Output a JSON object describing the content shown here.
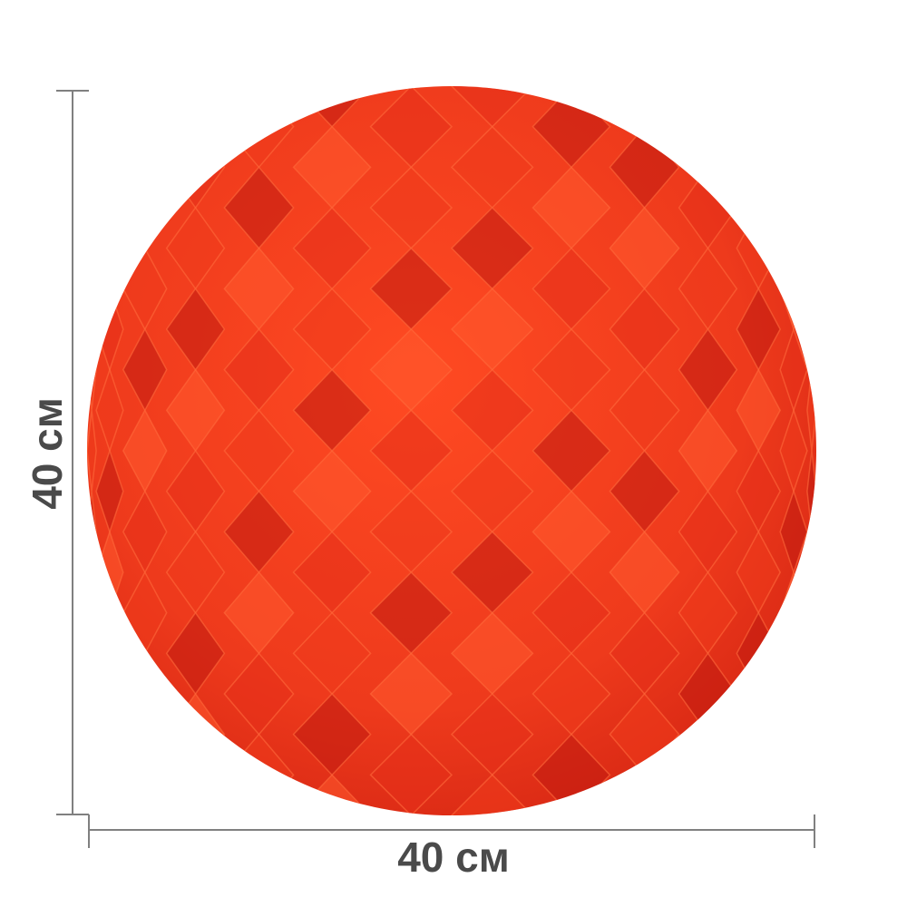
{
  "product": {
    "name_icon": "honeycomb-paper-ball",
    "color": "#ee3a1c",
    "shade_dark": "#c01a10",
    "shade_light": "#ff5a2e"
  },
  "dimensions": {
    "width_label": "40 см",
    "height_label": "40 см",
    "line_color": "#808080",
    "text_color": "#4a4a4a"
  }
}
